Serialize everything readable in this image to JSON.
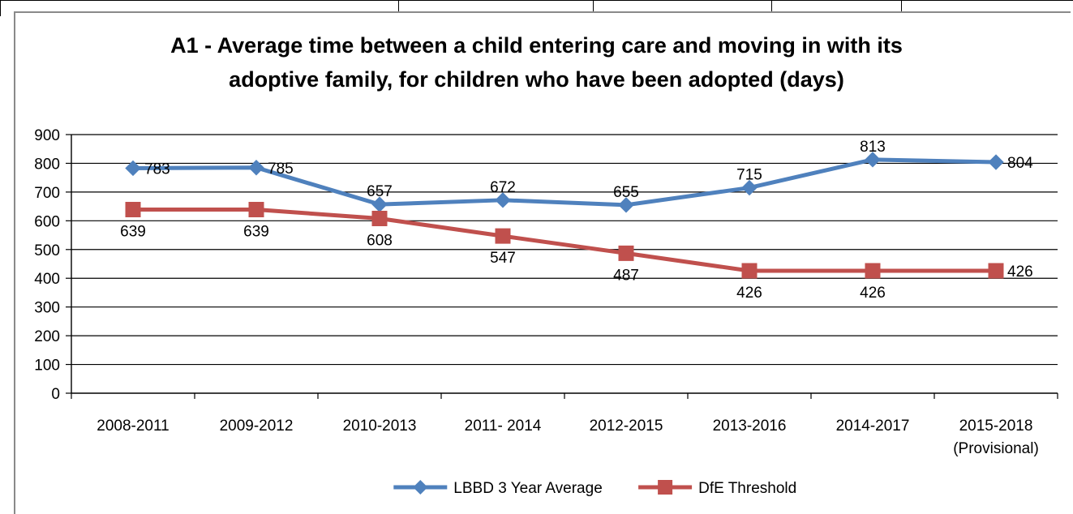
{
  "chart_data": {
    "type": "line",
    "title_lines": [
      "A1 - Average time between a child entering care and moving in with its",
      "adoptive family, for children who have been adopted (days)"
    ],
    "categories": [
      [
        "2008-2011"
      ],
      [
        "2009-2012"
      ],
      [
        "2010-2013"
      ],
      [
        "2011- 2014"
      ],
      [
        "2012-2015"
      ],
      [
        "2013-2016"
      ],
      [
        "2014-2017"
      ],
      [
        "2015-2018",
        "(Provisional)"
      ]
    ],
    "ylim": [
      0,
      900
    ],
    "yticks": [
      0,
      100,
      200,
      300,
      400,
      500,
      600,
      700,
      800,
      900
    ],
    "grid": true,
    "legend_position": "bottom",
    "series": [
      {
        "name": "LBBD 3 Year Average",
        "values": [
          783,
          785,
          657,
          672,
          655,
          715,
          813,
          804
        ],
        "color": "#4f81bd",
        "marker": "diamond",
        "label_placement": [
          "right",
          "right",
          "above",
          "above",
          "above",
          "above",
          "above",
          "right"
        ]
      },
      {
        "name": "DfE Threshold",
        "values": [
          639,
          639,
          608,
          547,
          487,
          426,
          426,
          426
        ],
        "color": "#c0504d",
        "marker": "square",
        "label_placement": [
          "below",
          "below",
          "below",
          "below",
          "below",
          "below",
          "below",
          "right"
        ]
      }
    ]
  }
}
